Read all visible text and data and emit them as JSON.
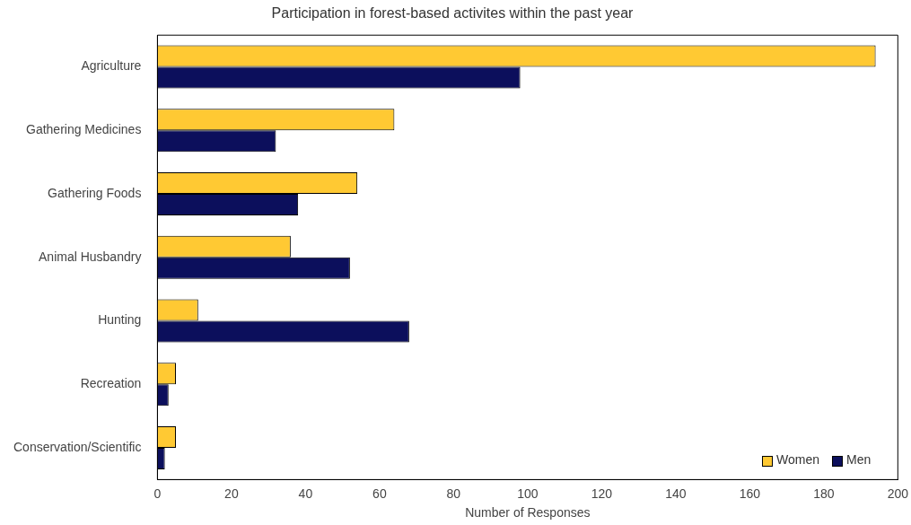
{
  "chart_data": {
    "type": "bar",
    "orientation": "horizontal",
    "title": "Participation in forest-based activites within the past year",
    "xlabel": "Number of Responses",
    "categories": [
      "Agriculture",
      "Gathering Medicines",
      "Gathering Foods",
      "Animal Husbandry",
      "Hunting",
      "Recreation",
      "Conservation/Scientific"
    ],
    "series": [
      {
        "name": "Women",
        "color": "#ffc933",
        "values": [
          194,
          64,
          54,
          36,
          11,
          5,
          5
        ]
      },
      {
        "name": "Men",
        "color": "#0c0f5c",
        "values": [
          98,
          32,
          38,
          52,
          68,
          3,
          2
        ]
      }
    ],
    "xlim": [
      0,
      200
    ],
    "xticks": [
      0,
      20,
      40,
      60,
      80,
      100,
      120,
      140,
      160,
      180,
      200
    ],
    "grid": false,
    "legend": "bottom right"
  }
}
